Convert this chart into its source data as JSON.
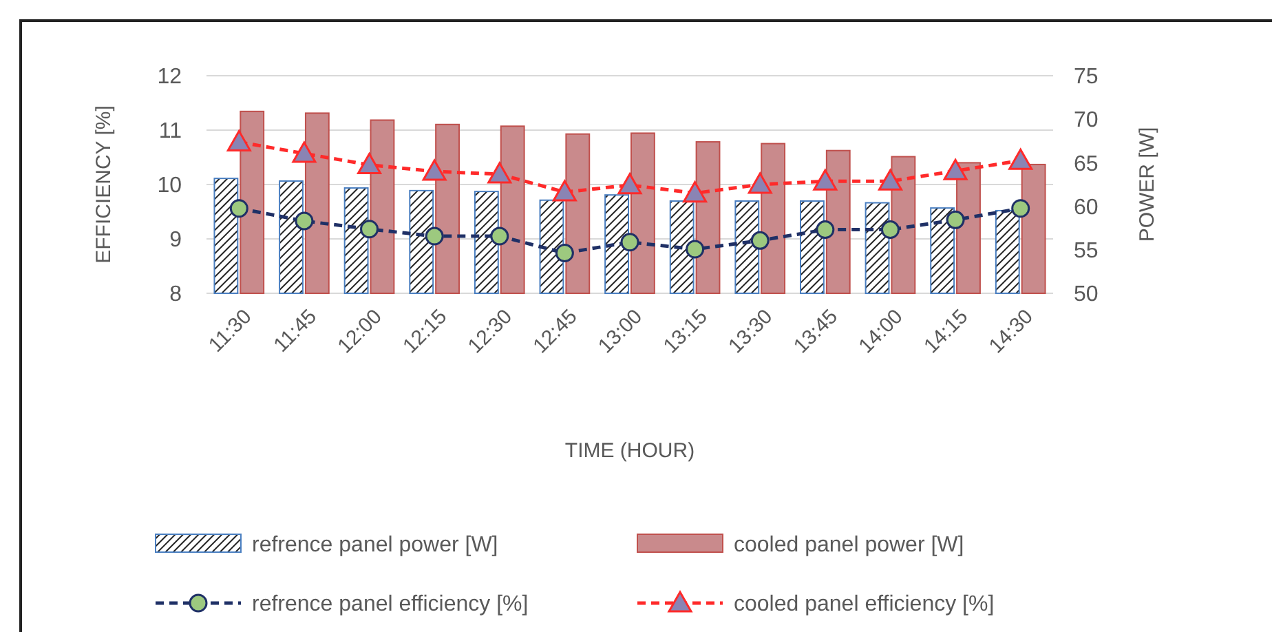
{
  "chart_data": {
    "type": "bar",
    "xlabel": "TIME (HOUR)",
    "ylabel": "EFFICIENCY [%]",
    "y2label": "POWER [W]",
    "categories": [
      "11:30",
      "11:45",
      "12:00",
      "12:15",
      "12:30",
      "12:45",
      "13:00",
      "13:15",
      "13:30",
      "13:45",
      "14:00",
      "14:15",
      "14:30"
    ],
    "series": [
      {
        "name": "refrence panel power [W]",
        "axis": "y2",
        "color": "#4a7fc1",
        "values": [
          63.2,
          62.9,
          62.1,
          61.8,
          61.7,
          60.7,
          61.3,
          60.6,
          60.6,
          60.6,
          60.4,
          59.8,
          59.5
        ]
      },
      {
        "name": "cooled panel power [W]",
        "axis": "y2",
        "color": "#c98a8c",
        "values": [
          70.9,
          70.7,
          69.9,
          69.4,
          69.2,
          68.3,
          68.4,
          67.4,
          67.2,
          66.4,
          65.7,
          65.0,
          64.8
        ]
      },
      {
        "name": "refrence panel efficiency [%]",
        "type": "line",
        "color": "#1f3066",
        "marker": "circle",
        "line_style": "dashed",
        "values": [
          9.56,
          9.33,
          9.18,
          9.05,
          9.05,
          8.74,
          8.94,
          8.81,
          8.97,
          9.17,
          9.17,
          9.35,
          9.56
        ]
      },
      {
        "name": "cooled panel efficiency [%]",
        "type": "line",
        "color": "#ff2a2a",
        "marker": "triangle",
        "line_style": "dashed",
        "values": [
          10.78,
          10.57,
          10.36,
          10.24,
          10.19,
          9.86,
          9.99,
          9.84,
          10.0,
          10.06,
          10.06,
          10.25,
          10.44
        ]
      }
    ],
    "ylim": [
      8,
      12
    ],
    "yticks": [
      8,
      9,
      10,
      11,
      12
    ],
    "y2lim": [
      50,
      75
    ],
    "y2ticks": [
      50,
      55,
      60,
      65,
      70,
      75
    ],
    "grid": "y",
    "legend": "bottom"
  }
}
